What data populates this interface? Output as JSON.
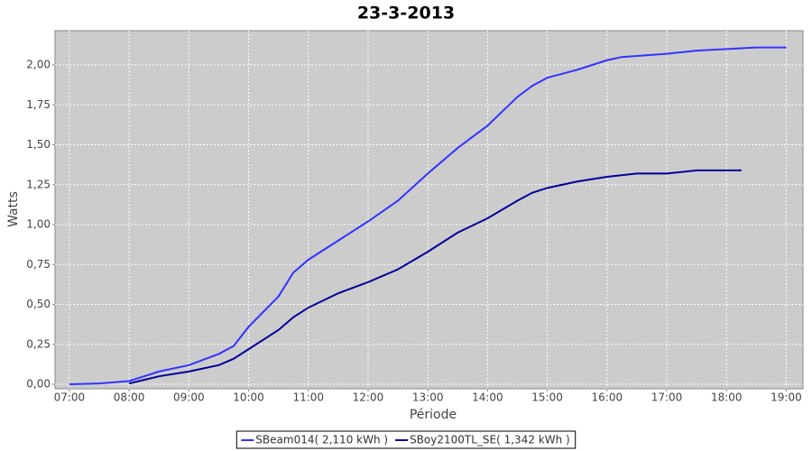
{
  "chart_data": {
    "type": "line",
    "title": "23-3-2013",
    "x_label": "Période",
    "y_label": "Watts",
    "xlim": [
      6.76,
      19.28
    ],
    "ylim": [
      -0.028,
      2.215
    ],
    "xticks": [
      {
        "value": 7,
        "label": "07:00"
      },
      {
        "value": 8,
        "label": "08:00"
      },
      {
        "value": 9,
        "label": "09:00"
      },
      {
        "value": 10,
        "label": "10:00"
      },
      {
        "value": 11,
        "label": "11:00"
      },
      {
        "value": 12,
        "label": "12:00"
      },
      {
        "value": 13,
        "label": "13:00"
      },
      {
        "value": 14,
        "label": "14:00"
      },
      {
        "value": 15,
        "label": "15:00"
      },
      {
        "value": 16,
        "label": "16:00"
      },
      {
        "value": 17,
        "label": "17:00"
      },
      {
        "value": 18,
        "label": "18:00"
      },
      {
        "value": 19,
        "label": "19:00"
      }
    ],
    "yticks": [
      {
        "value": 0,
        "label": "0,00"
      },
      {
        "value": 0.25,
        "label": "0,25"
      },
      {
        "value": 0.5,
        "label": "0,50"
      },
      {
        "value": 0.75,
        "label": "0,75"
      },
      {
        "value": 1,
        "label": "1,00"
      },
      {
        "value": 1.25,
        "label": "1,25"
      },
      {
        "value": 1.5,
        "label": "1,50"
      },
      {
        "value": 1.75,
        "label": "1,75"
      },
      {
        "value": 2,
        "label": "2,00"
      }
    ],
    "grid": true,
    "background": "#cccccc",
    "legend": "bottom",
    "series": [
      {
        "name": "SBeam014( 2,110 kWh )",
        "color": "#3333ff",
        "x": [
          7,
          7.5,
          8,
          8.25,
          8.5,
          9,
          9.5,
          9.75,
          10,
          10.5,
          10.75,
          11,
          11.5,
          12,
          12.5,
          13,
          13.5,
          14,
          14.5,
          14.75,
          15,
          15.5,
          16,
          16.25,
          17,
          17.5,
          18,
          18.5,
          19
        ],
        "values": [
          0,
          0.005,
          0.02,
          0.05,
          0.08,
          0.12,
          0.19,
          0.24,
          0.36,
          0.55,
          0.7,
          0.78,
          0.9,
          1.02,
          1.15,
          1.32,
          1.48,
          1.62,
          1.8,
          1.87,
          1.92,
          1.97,
          2.03,
          2.05,
          2.07,
          2.09,
          2.1,
          2.11,
          2.11
        ]
      },
      {
        "name": "SBoy2100TL_SE( 1,342 kWh )",
        "color": "#000099",
        "x": [
          8,
          8.5,
          9,
          9.5,
          9.75,
          10,
          10.5,
          10.75,
          11,
          11.5,
          12,
          12.5,
          13,
          13.5,
          14,
          14.5,
          14.75,
          15,
          15.5,
          16,
          16.5,
          17,
          17.5,
          18,
          18.25
        ],
        "values": [
          0.005,
          0.05,
          0.08,
          0.12,
          0.16,
          0.22,
          0.34,
          0.42,
          0.48,
          0.57,
          0.64,
          0.72,
          0.83,
          0.95,
          1.04,
          1.15,
          1.2,
          1.23,
          1.27,
          1.3,
          1.32,
          1.32,
          1.34,
          1.34,
          1.34
        ]
      }
    ]
  }
}
